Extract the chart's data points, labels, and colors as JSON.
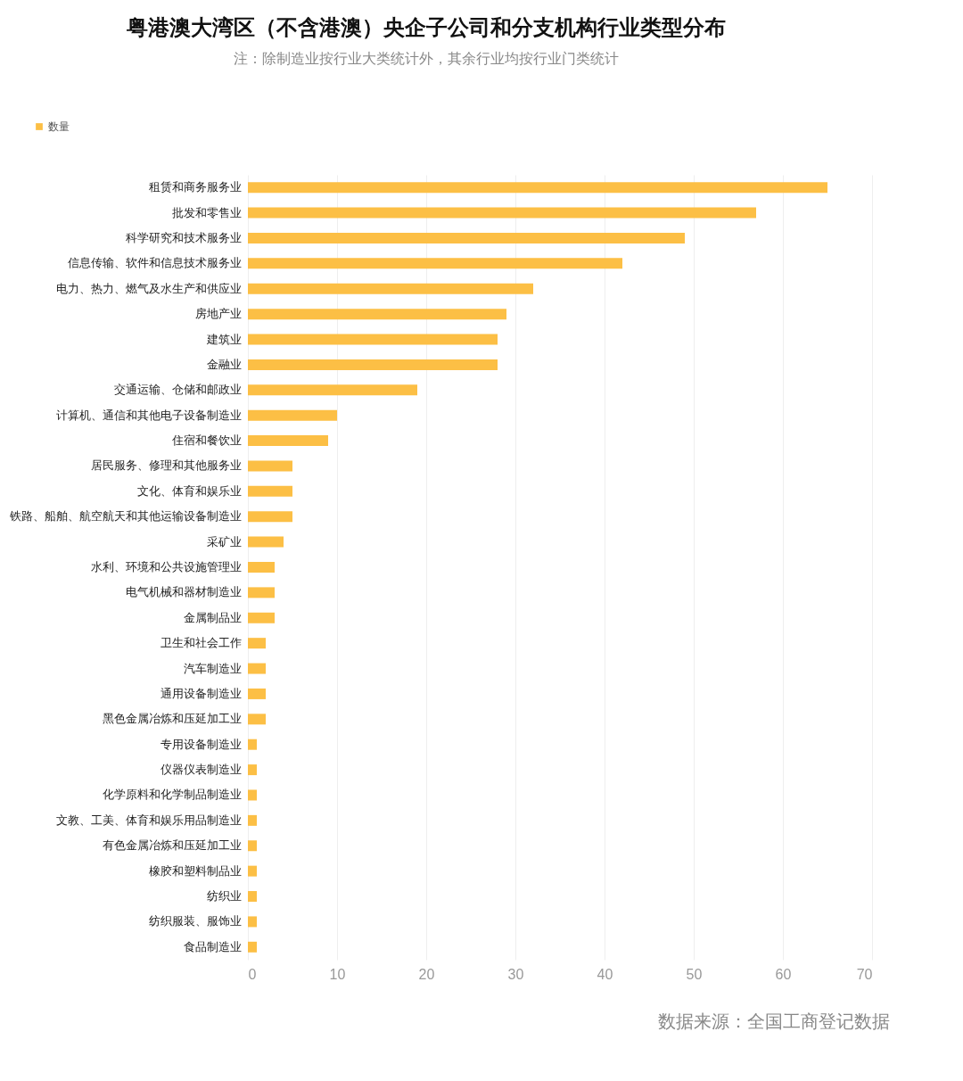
{
  "chart_data": {
    "type": "bar",
    "orientation": "horizontal",
    "title": "粤港澳大湾区（不含港澳）央企子公司和分支机构行业类型分布",
    "subtitle": "注：除制造业按行业大类统计外，其余行业均按行业门类统计",
    "categories": [
      "租赁和商务服务业",
      "批发和零售业",
      "科学研究和技术服务业",
      "信息传输、软件和信息技术服务业",
      "电力、热力、燃气及水生产和供应业",
      "房地产业",
      "建筑业",
      "金融业",
      "交通运输、仓储和邮政业",
      "计算机、通信和其他电子设备制造业",
      "住宿和餐饮业",
      "居民服务、修理和其他服务业",
      "文化、体育和娱乐业",
      "铁路、船舶、航空航天和其他运输设备制造业",
      "采矿业",
      "水利、环境和公共设施管理业",
      "电气机械和器材制造业",
      "金属制品业",
      "卫生和社会工作",
      "汽车制造业",
      "通用设备制造业",
      "黑色金属冶炼和压延加工业",
      "专用设备制造业",
      "仪器仪表制造业",
      "化学原料和化学制品制造业",
      "文教、工美、体育和娱乐用品制造业",
      "有色金属冶炼和压延加工业",
      "橡胶和塑料制品业",
      "纺织业",
      "纺织服装、服饰业",
      "食品制造业"
    ],
    "series": [
      {
        "name": "数量",
        "color": "#fcbf45",
        "values": [
          65,
          57,
          49,
          42,
          32,
          29,
          28,
          28,
          19,
          10,
          9,
          5,
          5,
          5,
          4,
          3,
          3,
          3,
          2,
          2,
          2,
          2,
          1,
          1,
          1,
          1,
          1,
          1,
          1,
          1,
          1
        ]
      }
    ],
    "xlim": [
      0,
      70
    ],
    "xticks": [
      0,
      10,
      20,
      30,
      40,
      50,
      60,
      70
    ],
    "grid": "x",
    "legend": "top left",
    "annotations": [
      "数据来源：全国工商登记数据"
    ]
  }
}
